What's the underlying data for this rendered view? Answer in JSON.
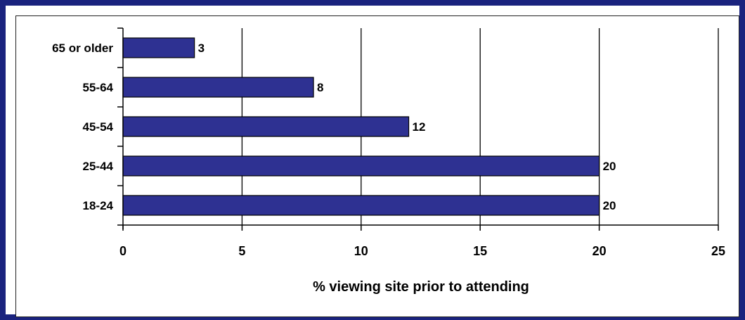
{
  "chart_data": {
    "type": "bar",
    "orientation": "horizontal",
    "title": "",
    "categories": [
      "65 or older",
      "55-64",
      "45-54",
      "25-44",
      "18-24"
    ],
    "values": [
      3,
      8,
      12,
      20,
      20
    ],
    "data_labels": [
      "3",
      "8",
      "12",
      "20",
      "20"
    ],
    "xlabel": "% viewing site prior to attending",
    "ylabel": "",
    "xlim": [
      0,
      25
    ],
    "xticks": [
      0,
      5,
      10,
      15,
      20,
      25
    ],
    "xtick_labels": [
      "0",
      "5",
      "10",
      "15",
      "20",
      "25"
    ],
    "grid": "vertical",
    "legend": "none",
    "colors": {
      "bar_fill": "#2e3192",
      "bar_stroke": "#000000",
      "frame": "#1a237e",
      "gridline": "#000000"
    }
  }
}
